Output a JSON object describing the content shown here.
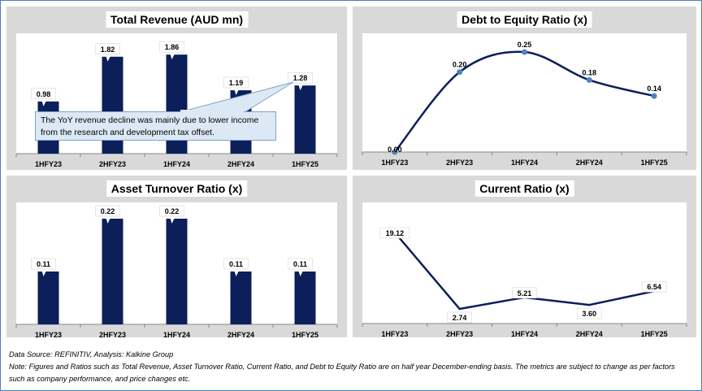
{
  "colors": {
    "bar": "#0c1f5a",
    "line": "#0c1f5a",
    "marker": "#4f81bd",
    "panel": "#d9d9d9",
    "plot": "#ffffff"
  },
  "chart_data": [
    {
      "type": "bar",
      "title": "Total Revenue (AUD mn)",
      "categories": [
        "1HFY23",
        "2HFY23",
        "1HFY24",
        "2HFY24",
        "1HFY25"
      ],
      "values": [
        0.98,
        1.82,
        1.86,
        1.19,
        1.28
      ],
      "data_labels": [
        "0.98",
        "1.82",
        "1.86",
        "1.19",
        "1.28"
      ],
      "annotation": "The YoY revenue decline was mainly due to lower income from the research and development tax offset.",
      "ylim": [
        0,
        2.0
      ],
      "grid": false
    },
    {
      "type": "line",
      "smooth": true,
      "markers": true,
      "title": "Debt to Equity Ratio (x)",
      "categories": [
        "1HFY23",
        "2HFY23",
        "1HFY24",
        "2HFY24",
        "1HFY25"
      ],
      "values": [
        0.0,
        0.2,
        0.25,
        0.18,
        0.14
      ],
      "data_labels": [
        "0.00",
        "0.20",
        "0.25",
        "0.18",
        "0.14"
      ],
      "ylim": [
        0,
        0.25
      ],
      "grid": false
    },
    {
      "type": "bar",
      "title": "Asset Turnover Ratio (x)",
      "categories": [
        "1HFY23",
        "2HFY23",
        "1HFY24",
        "2HFY24",
        "1HFY25"
      ],
      "values": [
        0.11,
        0.22,
        0.22,
        0.11,
        0.11
      ],
      "data_labels": [
        "0.11",
        "0.22",
        "0.22",
        "0.11",
        "0.11"
      ],
      "ylim": [
        0,
        0.22
      ],
      "grid": false
    },
    {
      "type": "line",
      "smooth": false,
      "markers": false,
      "title": "Current Ratio (x)",
      "categories": [
        "1HFY23",
        "2HFY23",
        "1HFY24",
        "2HFY24",
        "1HFY25"
      ],
      "values": [
        19.12,
        2.74,
        5.21,
        3.6,
        6.54
      ],
      "data_labels": [
        "19.12",
        "2.74",
        "5.21",
        "3.60",
        "6.54"
      ],
      "ylim": [
        2.74,
        19.12
      ],
      "grid": false
    }
  ],
  "footer": {
    "source": "Data Source: REFINITIV, Analysis: Kalkine Group",
    "note": "Note: Figures and Ratios such as Total Revenue, Asset Turnover Ratio, Current Ratio, and Debt to Equity Ratio are on half year December-ending basis. The metrics are subject to change as per factors such as company performance, and price changes etc."
  }
}
